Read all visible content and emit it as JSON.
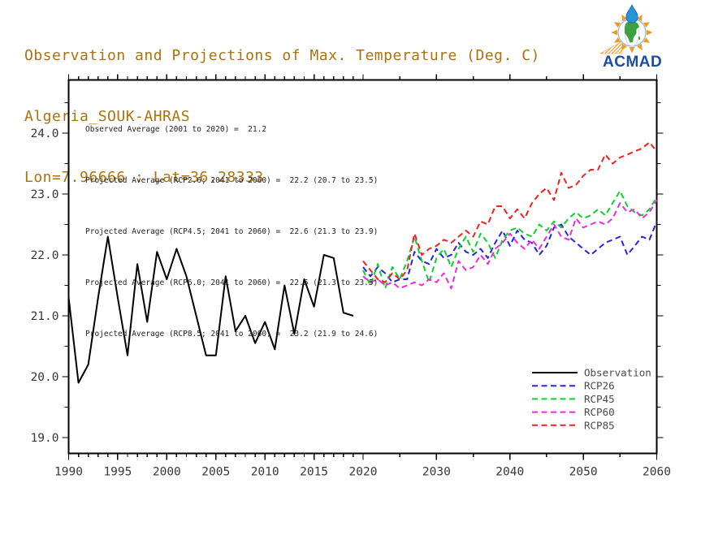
{
  "header": {
    "title": "Observation and Projections of Max. Temperature (Deg. C)",
    "station": "Algeria_SOUK-AHRAS",
    "coords": "Lon=7.96666 : Lat=36.28333",
    "title_color": "#aa7310"
  },
  "logo": {
    "brand": "ACMAD",
    "brand_color": "#1c4e9d",
    "ray_color": "#f29a1f",
    "africa_color": "#3da23d",
    "drop_color": "#2a93d5",
    "globe_ring_color": "#8ab4d8"
  },
  "annotations": [
    "Observed Average (2001 to 2020) =  21.2",
    "Projected Average (RCP2.6; 2041 to 2060) =  22.2 (20.7 to 23.5)",
    "Projected Average (RCP4.5; 2041 to 2060) =  22.6 (21.3 to 23.9)",
    "Projected Average (RCP6.0; 2041 to 2060) =  22.5 (21.3 to 23.5)",
    "Projected Average (RCP8.5; 2041 to 2060) =  23.2 (21.9 to 24.6)"
  ],
  "legend": [
    {
      "label": "Observation",
      "color": "#000000",
      "dashed": false
    },
    {
      "label": "RCP26",
      "color": "#2424e0",
      "dashed": true
    },
    {
      "label": "RCP45",
      "color": "#0ad22c",
      "dashed": true
    },
    {
      "label": "RCP60",
      "color": "#f228de",
      "dashed": true
    },
    {
      "label": "RCP85",
      "color": "#f02020",
      "dashed": true
    }
  ],
  "chart_data": {
    "type": "line",
    "title": "Observation and Projections of Max. Temperature (Deg. C)",
    "xlabel": "",
    "ylabel": "",
    "xlim": [
      1990,
      2060
    ],
    "ylim": [
      18.75,
      24.9
    ],
    "grid": false,
    "legend_position": "bottom-right",
    "x_tick_labels": [
      "1990",
      "1995",
      "2000",
      "2005",
      "2010",
      "2015",
      "2020",
      "2030",
      "2040",
      "2050",
      "2060"
    ],
    "x_tick_values": [
      1990,
      1995,
      2000,
      2005,
      2010,
      2015,
      2020,
      2030,
      2040,
      2050,
      2060
    ],
    "y_tick_labels": [
      "19.0",
      "20.0",
      "21.0",
      "22.0",
      "23.0",
      "24.0"
    ],
    "y_tick_values": [
      19,
      20,
      21,
      22,
      23,
      24
    ],
    "series": [
      {
        "name": "Observation",
        "color": "#000000",
        "dashed": false,
        "x_start": 1990,
        "values": [
          21.3,
          19.9,
          20.2,
          21.3,
          22.3,
          21.3,
          20.35,
          21.85,
          20.9,
          22.05,
          21.6,
          22.1,
          21.65,
          21.0,
          20.35,
          20.35,
          21.65,
          20.75,
          21.0,
          20.55,
          20.9,
          20.45,
          21.5,
          20.7,
          21.6,
          21.15,
          22.0,
          21.95,
          21.05,
          21.0
        ]
      },
      {
        "name": "RCP26",
        "color": "#2424e0",
        "dashed": true,
        "x_start": 2020,
        "values": [
          21.8,
          21.65,
          21.8,
          21.7,
          21.55,
          21.6,
          21.6,
          22.05,
          21.9,
          21.85,
          22.1,
          21.95,
          22.0,
          22.2,
          22.05,
          22.0,
          22.1,
          21.95,
          22.2,
          22.4,
          22.15,
          22.4,
          22.25,
          22.2,
          22.0,
          22.15,
          22.45,
          22.5,
          22.3,
          22.2,
          22.1,
          22.0,
          22.1,
          22.2,
          22.25,
          22.3,
          22.0,
          22.15,
          22.3,
          22.25,
          22.55
        ]
      },
      {
        "name": "RCP45",
        "color": "#0ad22c",
        "dashed": true,
        "x_start": 2020,
        "values": [
          21.75,
          21.5,
          21.85,
          21.45,
          21.8,
          21.6,
          21.9,
          22.3,
          21.9,
          21.55,
          21.95,
          22.1,
          21.8,
          22.1,
          22.3,
          22.05,
          22.35,
          22.2,
          21.95,
          22.25,
          22.4,
          22.45,
          22.35,
          22.3,
          22.5,
          22.4,
          22.55,
          22.45,
          22.6,
          22.7,
          22.6,
          22.65,
          22.75,
          22.65,
          22.85,
          23.05,
          22.8,
          22.7,
          22.65,
          22.75,
          22.95
        ]
      },
      {
        "name": "RCP60",
        "color": "#f228de",
        "dashed": true,
        "x_start": 2020,
        "values": [
          21.65,
          21.55,
          21.6,
          21.5,
          21.55,
          21.45,
          21.5,
          21.55,
          21.5,
          21.6,
          21.55,
          21.7,
          21.45,
          21.9,
          21.75,
          21.8,
          22.0,
          21.85,
          22.1,
          22.2,
          22.35,
          22.2,
          22.1,
          22.25,
          22.1,
          22.3,
          22.5,
          22.3,
          22.25,
          22.6,
          22.45,
          22.5,
          22.55,
          22.5,
          22.6,
          22.85,
          22.7,
          22.75,
          22.6,
          22.7,
          22.9
        ]
      },
      {
        "name": "RCP85",
        "color": "#f02020",
        "dashed": true,
        "x_start": 2020,
        "values": [
          21.9,
          21.75,
          21.6,
          21.55,
          21.7,
          21.6,
          21.75,
          22.35,
          22.0,
          22.1,
          22.15,
          22.25,
          22.2,
          22.3,
          22.4,
          22.3,
          22.55,
          22.5,
          22.8,
          22.8,
          22.6,
          22.75,
          22.6,
          22.85,
          23.0,
          23.1,
          22.9,
          23.35,
          23.1,
          23.15,
          23.3,
          23.4,
          23.4,
          23.65,
          23.5,
          23.6,
          23.65,
          23.7,
          23.75,
          23.85,
          23.7
        ]
      }
    ]
  }
}
